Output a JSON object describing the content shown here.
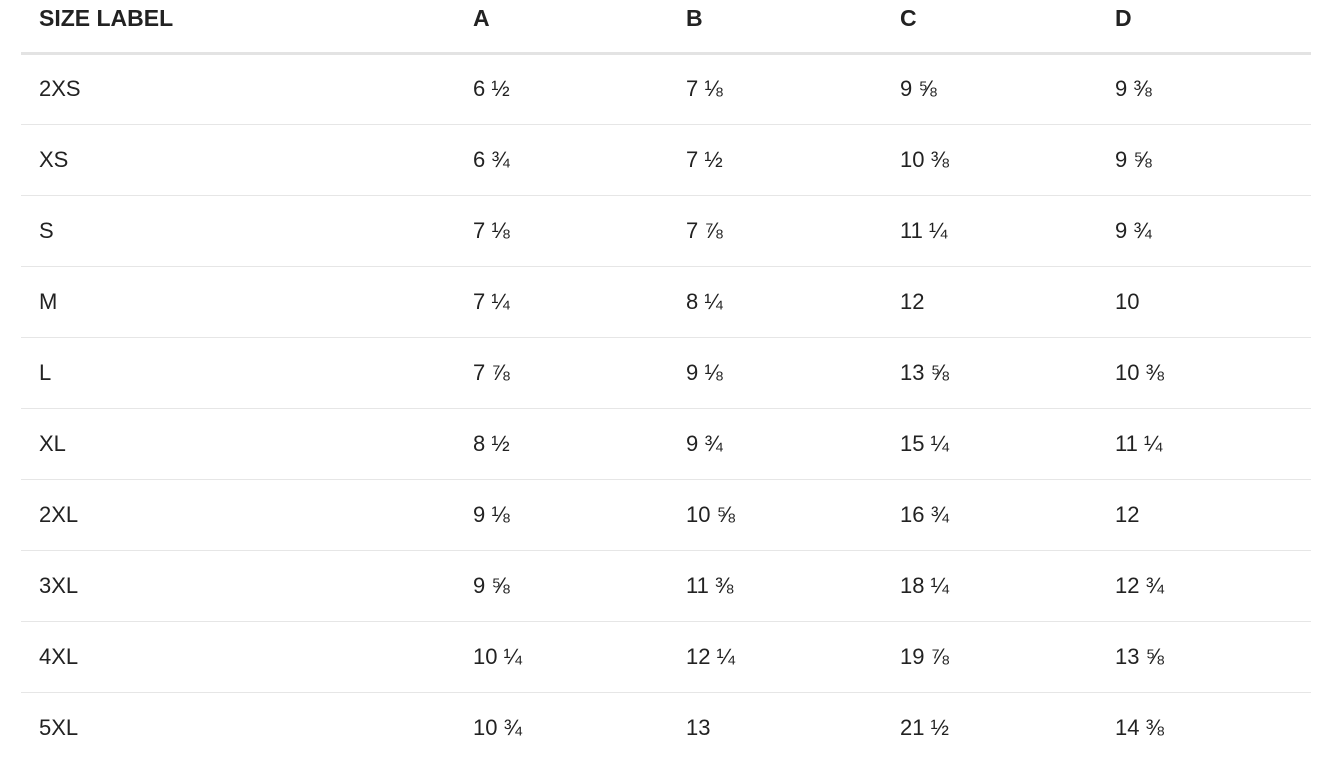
{
  "size_chart": {
    "headers": [
      "SIZE LABEL",
      "A",
      "B",
      "C",
      "D"
    ],
    "rows": [
      {
        "size": "2XS",
        "a": "6 ½",
        "b": "7 ⅛",
        "c": "9 ⅝",
        "d": "9 ⅜"
      },
      {
        "size": "XS",
        "a": "6 ¾",
        "b": "7 ½",
        "c": "10 ⅜",
        "d": "9 ⅝"
      },
      {
        "size": "S",
        "a": "7 ⅛",
        "b": "7 ⅞",
        "c": "11 ¼",
        "d": "9 ¾"
      },
      {
        "size": "M",
        "a": "7 ¼",
        "b": "8 ¼",
        "c": "12",
        "d": "10"
      },
      {
        "size": "L",
        "a": "7 ⅞",
        "b": "9 ⅛",
        "c": "13 ⅝",
        "d": "10 ⅜"
      },
      {
        "size": "XL",
        "a": "8 ½",
        "b": "9 ¾",
        "c": "15 ¼",
        "d": "11 ¼"
      },
      {
        "size": "2XL",
        "a": "9 ⅛",
        "b": "10 ⅝",
        "c": "16 ¾",
        "d": "12"
      },
      {
        "size": "3XL",
        "a": "9 ⅝",
        "b": "11 ⅜",
        "c": "18 ¼",
        "d": "12 ¾"
      },
      {
        "size": "4XL",
        "a": "10 ¼",
        "b": "12 ¼",
        "c": "19 ⅞",
        "d": "13 ⅝"
      },
      {
        "size": "5XL",
        "a": "10 ¾",
        "b": "13",
        "c": "21 ½",
        "d": "14 ⅜"
      }
    ]
  }
}
